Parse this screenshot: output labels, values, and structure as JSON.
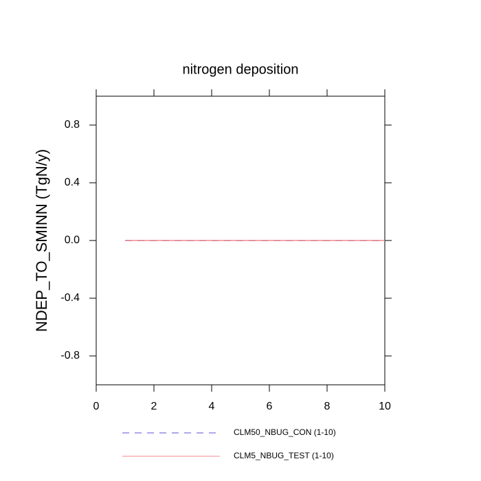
{
  "chart_data": {
    "type": "line",
    "title": "nitrogen deposition",
    "y_label": "NDEP_TO_SMINN  (TgN/y)",
    "x": [
      1,
      2,
      3,
      4,
      5,
      6,
      7,
      8,
      9,
      10
    ],
    "series": [
      {
        "name": "CLM50_NBUG_CON (1-10)",
        "color": "#5b4fd6",
        "dash": true,
        "values": [
          0,
          0,
          0,
          0,
          0,
          0,
          0,
          0,
          0,
          0
        ]
      },
      {
        "name": "CLM5_NBUG_TEST (1-10)",
        "color": "#f08a8a",
        "dash": false,
        "values": [
          0,
          0,
          0,
          0,
          0,
          0,
          0,
          0,
          0,
          0
        ]
      }
    ],
    "xlim": [
      0,
      10
    ],
    "xticks": [
      0,
      2,
      4,
      6,
      8,
      10
    ],
    "ylim": [
      -1,
      1
    ],
    "yticks": [
      -0.8,
      -0.4,
      {
        "value": 0,
        "label": "0.0"
      },
      0.4,
      0.8
    ]
  }
}
